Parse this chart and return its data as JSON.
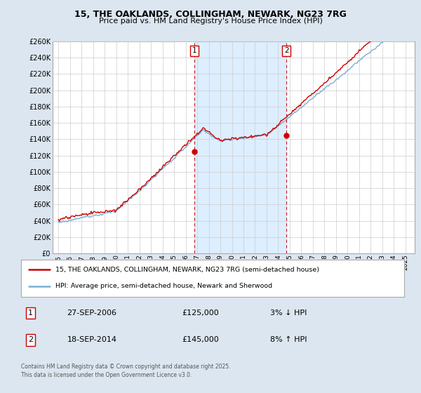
{
  "title": "15, THE OAKLANDS, COLLINGHAM, NEWARK, NG23 7RG",
  "subtitle": "Price paid vs. HM Land Registry's House Price Index (HPI)",
  "legend_line1": "15, THE OAKLANDS, COLLINGHAM, NEWARK, NG23 7RG (semi-detached house)",
  "legend_line2": "HPI: Average price, semi-detached house, Newark and Sherwood",
  "transaction1_date": "27-SEP-2006",
  "transaction1_price": "£125,000",
  "transaction1_hpi": "3% ↓ HPI",
  "transaction1_year": 2006.75,
  "transaction2_date": "18-SEP-2014",
  "transaction2_price": "£145,000",
  "transaction2_hpi": "8% ↑ HPI",
  "transaction2_year": 2014.72,
  "footer": "Contains HM Land Registry data © Crown copyright and database right 2025.\nThis data is licensed under the Open Government Licence v3.0.",
  "property_color": "#cc0000",
  "hpi_color": "#7bafd4",
  "shade_color": "#ddeeff",
  "background_color": "#dce6f0",
  "plot_bg_color": "#ffffff",
  "grid_color": "#cccccc",
  "vline_color": "#cc0000",
  "ylim": [
    0,
    260000
  ],
  "yticks": [
    0,
    20000,
    40000,
    60000,
    80000,
    100000,
    120000,
    140000,
    160000,
    180000,
    200000,
    220000,
    240000,
    260000
  ],
  "xlim_start": 1994.5,
  "xlim_end": 2025.8
}
